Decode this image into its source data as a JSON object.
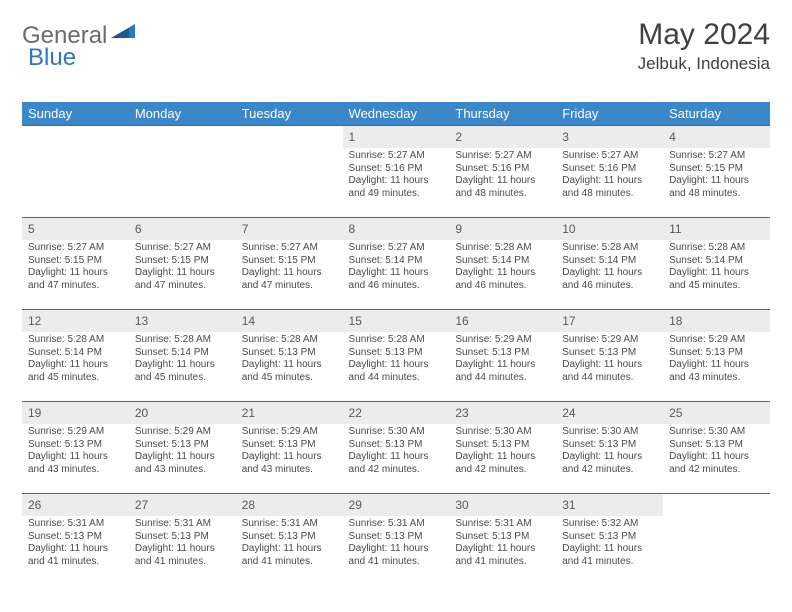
{
  "logo": {
    "text_a": "General",
    "text_b": "Blue"
  },
  "title": "May 2024",
  "location": "Jelbuk, Indonesia",
  "colors": {
    "header_bg": "#3c87c7",
    "header_text": "#ffffff",
    "row_border": "#2f6ea8",
    "daynum_bg": "#ececec",
    "body_text": "#4a4a4a",
    "title_text": "#404040",
    "logo_gray": "#6b6b6b",
    "logo_blue": "#2f78b8"
  },
  "weekdays": [
    "Sunday",
    "Monday",
    "Tuesday",
    "Wednesday",
    "Thursday",
    "Friday",
    "Saturday"
  ],
  "weeks": [
    [
      {
        "day": "",
        "sunrise": "",
        "sunset": "",
        "daylight": ""
      },
      {
        "day": "",
        "sunrise": "",
        "sunset": "",
        "daylight": ""
      },
      {
        "day": "",
        "sunrise": "",
        "sunset": "",
        "daylight": ""
      },
      {
        "day": "1",
        "sunrise": "Sunrise: 5:27 AM",
        "sunset": "Sunset: 5:16 PM",
        "daylight": "Daylight: 11 hours and 49 minutes."
      },
      {
        "day": "2",
        "sunrise": "Sunrise: 5:27 AM",
        "sunset": "Sunset: 5:16 PM",
        "daylight": "Daylight: 11 hours and 48 minutes."
      },
      {
        "day": "3",
        "sunrise": "Sunrise: 5:27 AM",
        "sunset": "Sunset: 5:16 PM",
        "daylight": "Daylight: 11 hours and 48 minutes."
      },
      {
        "day": "4",
        "sunrise": "Sunrise: 5:27 AM",
        "sunset": "Sunset: 5:15 PM",
        "daylight": "Daylight: 11 hours and 48 minutes."
      }
    ],
    [
      {
        "day": "5",
        "sunrise": "Sunrise: 5:27 AM",
        "sunset": "Sunset: 5:15 PM",
        "daylight": "Daylight: 11 hours and 47 minutes."
      },
      {
        "day": "6",
        "sunrise": "Sunrise: 5:27 AM",
        "sunset": "Sunset: 5:15 PM",
        "daylight": "Daylight: 11 hours and 47 minutes."
      },
      {
        "day": "7",
        "sunrise": "Sunrise: 5:27 AM",
        "sunset": "Sunset: 5:15 PM",
        "daylight": "Daylight: 11 hours and 47 minutes."
      },
      {
        "day": "8",
        "sunrise": "Sunrise: 5:27 AM",
        "sunset": "Sunset: 5:14 PM",
        "daylight": "Daylight: 11 hours and 46 minutes."
      },
      {
        "day": "9",
        "sunrise": "Sunrise: 5:28 AM",
        "sunset": "Sunset: 5:14 PM",
        "daylight": "Daylight: 11 hours and 46 minutes."
      },
      {
        "day": "10",
        "sunrise": "Sunrise: 5:28 AM",
        "sunset": "Sunset: 5:14 PM",
        "daylight": "Daylight: 11 hours and 46 minutes."
      },
      {
        "day": "11",
        "sunrise": "Sunrise: 5:28 AM",
        "sunset": "Sunset: 5:14 PM",
        "daylight": "Daylight: 11 hours and 45 minutes."
      }
    ],
    [
      {
        "day": "12",
        "sunrise": "Sunrise: 5:28 AM",
        "sunset": "Sunset: 5:14 PM",
        "daylight": "Daylight: 11 hours and 45 minutes."
      },
      {
        "day": "13",
        "sunrise": "Sunrise: 5:28 AM",
        "sunset": "Sunset: 5:14 PM",
        "daylight": "Daylight: 11 hours and 45 minutes."
      },
      {
        "day": "14",
        "sunrise": "Sunrise: 5:28 AM",
        "sunset": "Sunset: 5:13 PM",
        "daylight": "Daylight: 11 hours and 45 minutes."
      },
      {
        "day": "15",
        "sunrise": "Sunrise: 5:28 AM",
        "sunset": "Sunset: 5:13 PM",
        "daylight": "Daylight: 11 hours and 44 minutes."
      },
      {
        "day": "16",
        "sunrise": "Sunrise: 5:29 AM",
        "sunset": "Sunset: 5:13 PM",
        "daylight": "Daylight: 11 hours and 44 minutes."
      },
      {
        "day": "17",
        "sunrise": "Sunrise: 5:29 AM",
        "sunset": "Sunset: 5:13 PM",
        "daylight": "Daylight: 11 hours and 44 minutes."
      },
      {
        "day": "18",
        "sunrise": "Sunrise: 5:29 AM",
        "sunset": "Sunset: 5:13 PM",
        "daylight": "Daylight: 11 hours and 43 minutes."
      }
    ],
    [
      {
        "day": "19",
        "sunrise": "Sunrise: 5:29 AM",
        "sunset": "Sunset: 5:13 PM",
        "daylight": "Daylight: 11 hours and 43 minutes."
      },
      {
        "day": "20",
        "sunrise": "Sunrise: 5:29 AM",
        "sunset": "Sunset: 5:13 PM",
        "daylight": "Daylight: 11 hours and 43 minutes."
      },
      {
        "day": "21",
        "sunrise": "Sunrise: 5:29 AM",
        "sunset": "Sunset: 5:13 PM",
        "daylight": "Daylight: 11 hours and 43 minutes."
      },
      {
        "day": "22",
        "sunrise": "Sunrise: 5:30 AM",
        "sunset": "Sunset: 5:13 PM",
        "daylight": "Daylight: 11 hours and 42 minutes."
      },
      {
        "day": "23",
        "sunrise": "Sunrise: 5:30 AM",
        "sunset": "Sunset: 5:13 PM",
        "daylight": "Daylight: 11 hours and 42 minutes."
      },
      {
        "day": "24",
        "sunrise": "Sunrise: 5:30 AM",
        "sunset": "Sunset: 5:13 PM",
        "daylight": "Daylight: 11 hours and 42 minutes."
      },
      {
        "day": "25",
        "sunrise": "Sunrise: 5:30 AM",
        "sunset": "Sunset: 5:13 PM",
        "daylight": "Daylight: 11 hours and 42 minutes."
      }
    ],
    [
      {
        "day": "26",
        "sunrise": "Sunrise: 5:31 AM",
        "sunset": "Sunset: 5:13 PM",
        "daylight": "Daylight: 11 hours and 41 minutes."
      },
      {
        "day": "27",
        "sunrise": "Sunrise: 5:31 AM",
        "sunset": "Sunset: 5:13 PM",
        "daylight": "Daylight: 11 hours and 41 minutes."
      },
      {
        "day": "28",
        "sunrise": "Sunrise: 5:31 AM",
        "sunset": "Sunset: 5:13 PM",
        "daylight": "Daylight: 11 hours and 41 minutes."
      },
      {
        "day": "29",
        "sunrise": "Sunrise: 5:31 AM",
        "sunset": "Sunset: 5:13 PM",
        "daylight": "Daylight: 11 hours and 41 minutes."
      },
      {
        "day": "30",
        "sunrise": "Sunrise: 5:31 AM",
        "sunset": "Sunset: 5:13 PM",
        "daylight": "Daylight: 11 hours and 41 minutes."
      },
      {
        "day": "31",
        "sunrise": "Sunrise: 5:32 AM",
        "sunset": "Sunset: 5:13 PM",
        "daylight": "Daylight: 11 hours and 41 minutes."
      },
      {
        "day": "",
        "sunrise": "",
        "sunset": "",
        "daylight": ""
      }
    ]
  ]
}
